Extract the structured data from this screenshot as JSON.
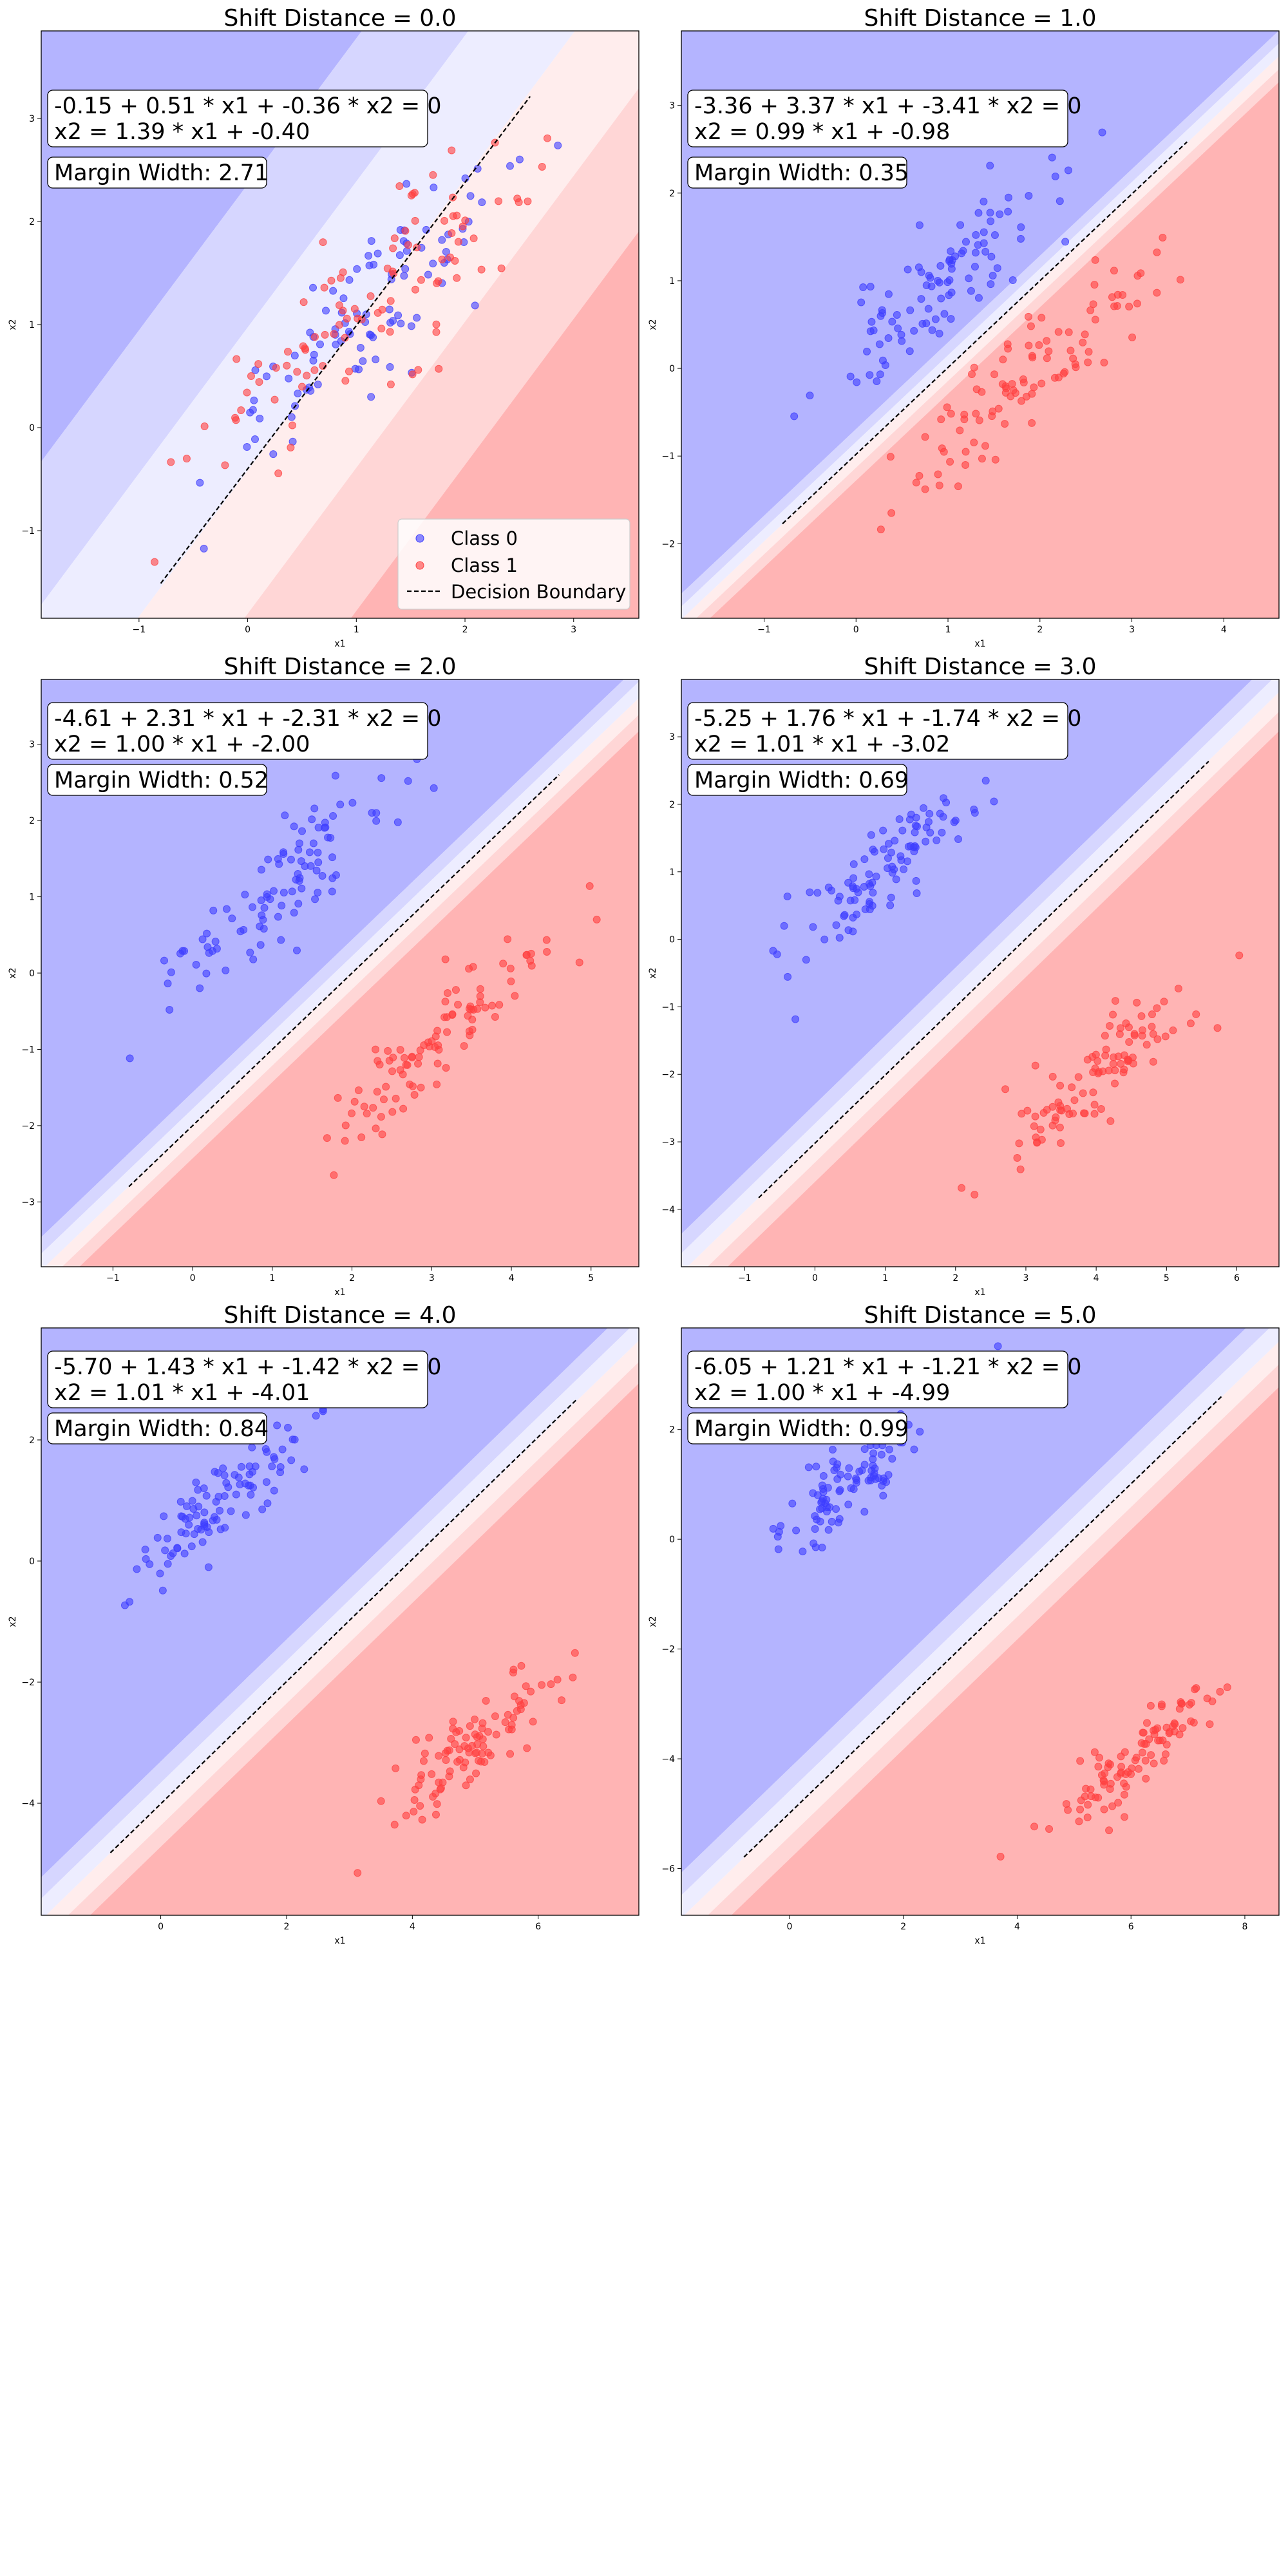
{
  "chart_data": [
    {
      "type": "scatter",
      "title": "Shift Distance = 0.0",
      "xlabel": "x1",
      "ylabel": "x2",
      "xlim": [
        -1.9,
        3.6
      ],
      "ylim": [
        -1.85,
        3.85
      ],
      "xticks": [
        -1,
        0,
        1,
        2,
        3
      ],
      "yticks": [
        -1,
        0,
        1,
        2,
        3
      ],
      "equation": "-0.15 + 0.51 * x1 + -0.36 * x2 = 0",
      "line_equation": "x2 = 1.39 * x1 + -0.40",
      "margin_label": "Margin Width: 2.71",
      "coef": {
        "b": -0.15,
        "w1": 0.51,
        "w2": -0.36
      },
      "boundary": {
        "x_start": -0.8,
        "x_end": 2.6,
        "slope": 1.39,
        "intercept": -0.4
      },
      "class0": {
        "center": [
          1.1,
          1.15
        ],
        "spread": 0.75,
        "n": 100
      },
      "class1": {
        "center": [
          1.1,
          1.15
        ],
        "spread": 0.75,
        "n": 100
      },
      "show_legend": true,
      "legend_placement": "lower-right"
    },
    {
      "type": "scatter",
      "title": "Shift Distance = 1.0",
      "xlabel": "x1",
      "ylabel": "x2",
      "xlim": [
        -1.9,
        4.6
      ],
      "ylim": [
        -2.85,
        3.85
      ],
      "xticks": [
        -1,
        0,
        1,
        2,
        3,
        4
      ],
      "yticks": [
        -2,
        -1,
        0,
        1,
        2,
        3
      ],
      "equation": "-3.36 + 3.37 * x1 + -3.41 * x2 = 0",
      "line_equation": "x2 = 0.99 * x1 + -0.98",
      "margin_label": "Margin Width: 0.35",
      "coef": {
        "b": -3.36,
        "w1": 3.37,
        "w2": -3.41
      },
      "boundary": {
        "x_start": -0.8,
        "x_end": 3.6,
        "slope": 0.99,
        "intercept": -0.98
      },
      "class0": {
        "center": [
          1.0,
          1.0
        ],
        "spread": 0.7,
        "n": 100
      },
      "class1": {
        "center": [
          2.0,
          0.0
        ],
        "spread": 0.7,
        "n": 100
      },
      "show_legend": false
    },
    {
      "type": "scatter",
      "title": "Shift Distance = 2.0",
      "xlabel": "x1",
      "ylabel": "x2",
      "xlim": [
        -1.9,
        5.6
      ],
      "ylim": [
        -3.85,
        3.85
      ],
      "xticks": [
        -1,
        0,
        1,
        2,
        3,
        4,
        5
      ],
      "yticks": [
        -3,
        -2,
        -1,
        0,
        1,
        2,
        3
      ],
      "equation": "-4.61 + 2.31 * x1 + -2.31 * x2 = 0",
      "line_equation": "x2 = 1.00 * x1 + -2.00",
      "margin_label": "Margin Width: 0.52",
      "coef": {
        "b": -4.61,
        "w1": 2.31,
        "w2": -2.31
      },
      "boundary": {
        "x_start": -0.8,
        "x_end": 4.6,
        "slope": 1.0,
        "intercept": -2.0
      },
      "class0": {
        "center": [
          1.0,
          1.0
        ],
        "spread": 0.7,
        "n": 100
      },
      "class1": {
        "center": [
          3.0,
          -1.0
        ],
        "spread": 0.7,
        "n": 100
      },
      "show_legend": false
    },
    {
      "type": "scatter",
      "title": "Shift Distance = 3.0",
      "xlabel": "x1",
      "ylabel": "x2",
      "xlim": [
        -1.9,
        6.6
      ],
      "ylim": [
        -4.85,
        3.85
      ],
      "xticks": [
        -1,
        0,
        1,
        2,
        3,
        4,
        5,
        6
      ],
      "yticks": [
        -4,
        -3,
        -2,
        -1,
        0,
        1,
        2,
        3
      ],
      "equation": "-5.25 + 1.76 * x1 + -1.74 * x2 = 0",
      "line_equation": "x2 = 1.01 * x1 + -3.02",
      "margin_label": "Margin Width: 0.69",
      "coef": {
        "b": -5.25,
        "w1": 1.76,
        "w2": -1.74
      },
      "boundary": {
        "x_start": -0.8,
        "x_end": 5.6,
        "slope": 1.01,
        "intercept": -3.02
      },
      "class0": {
        "center": [
          1.0,
          1.0
        ],
        "spread": 0.7,
        "n": 100
      },
      "class1": {
        "center": [
          4.0,
          -2.0
        ],
        "spread": 0.7,
        "n": 100
      },
      "show_legend": false
    },
    {
      "type": "scatter",
      "title": "Shift Distance = 4.0",
      "xlabel": "x1",
      "ylabel": "x2",
      "xlim": [
        -1.9,
        7.6
      ],
      "ylim": [
        -5.85,
        3.85
      ],
      "xticks": [
        0,
        2,
        4,
        6
      ],
      "yticks": [
        -4,
        -2,
        0,
        2
      ],
      "equation": "-5.70 + 1.43 * x1 + -1.42 * x2 = 0",
      "line_equation": "x2 = 1.01 * x1 + -4.01",
      "margin_label": "Margin Width: 0.84",
      "coef": {
        "b": -5.7,
        "w1": 1.43,
        "w2": -1.42
      },
      "boundary": {
        "x_start": -0.8,
        "x_end": 6.6,
        "slope": 1.01,
        "intercept": -4.01
      },
      "class0": {
        "center": [
          1.0,
          1.0
        ],
        "spread": 0.7,
        "n": 100
      },
      "class1": {
        "center": [
          5.0,
          -3.0
        ],
        "spread": 0.7,
        "n": 100
      },
      "show_legend": false
    },
    {
      "type": "scatter",
      "title": "Shift Distance = 5.0",
      "xlabel": "x1",
      "ylabel": "x2",
      "xlim": [
        -1.9,
        8.6
      ],
      "ylim": [
        -6.85,
        3.85
      ],
      "xticks": [
        0,
        2,
        4,
        6,
        8
      ],
      "yticks": [
        -6,
        -4,
        -2,
        0,
        2
      ],
      "equation": "-6.05 + 1.21 * x1 + -1.21 * x2 = 0",
      "line_equation": "x2 = 1.00 * x1 + -4.99",
      "margin_label": "Margin Width: 0.99",
      "coef": {
        "b": -6.05,
        "w1": 1.21,
        "w2": -1.21
      },
      "boundary": {
        "x_start": -0.8,
        "x_end": 7.6,
        "slope": 1.0,
        "intercept": -4.99
      },
      "class0": {
        "center": [
          1.0,
          1.0
        ],
        "spread": 0.7,
        "n": 100
      },
      "class1": {
        "center": [
          6.0,
          -4.0
        ],
        "spread": 0.7,
        "n": 100
      },
      "show_legend": false
    }
  ],
  "legend": {
    "class0": "Class 0",
    "class1": "Class 1",
    "boundary": "Decision Boundary"
  },
  "colors": {
    "class0": "#3d3dff",
    "class1": "#ff4040",
    "boundary": "#000000",
    "region_blue": [
      "#b4b4ff",
      "#d6d6ff",
      "#ededff"
    ],
    "region_red": [
      "#ffb4b4",
      "#ffd6d6",
      "#ffeded"
    ]
  }
}
